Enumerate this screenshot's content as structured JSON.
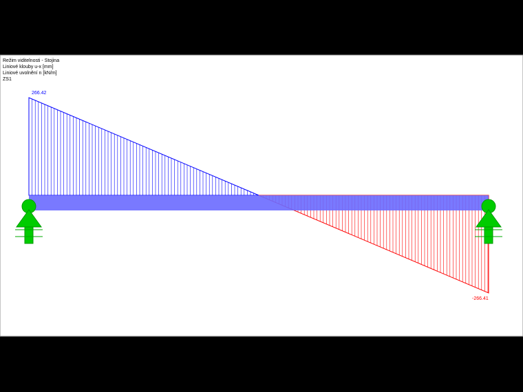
{
  "header": {
    "lines": [
      "Režim viditelnosti - Stojina",
      "Liniové klouby u-x [mm]",
      "Liniové uvolnění n [kN/m]",
      "ZS1"
    ]
  },
  "diagram": {
    "start_value": 266.42,
    "end_value": -266.41,
    "positive_color": "#0000ff",
    "negative_color": "#ff0000"
  }
}
